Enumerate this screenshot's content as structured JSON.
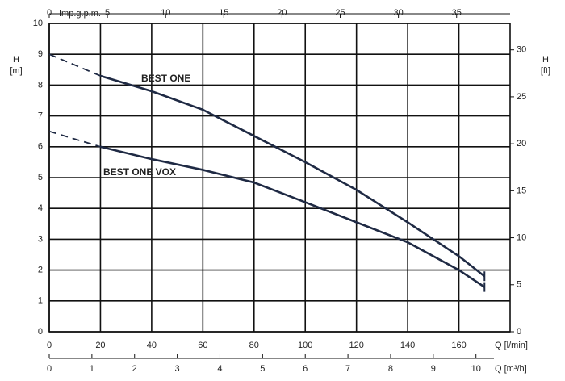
{
  "chart_data": {
    "type": "line",
    "x_label": "Q [l/min]",
    "x2_label": "Imp.g.p.m.",
    "x3_label": "Q [m³/h]",
    "y_label": "H\n[m]",
    "y2_label": "H\n[ft]",
    "xlim": [
      0,
      180
    ],
    "xticks": [
      0,
      20,
      40,
      60,
      80,
      100,
      120,
      140,
      160
    ],
    "x2lim": [
      0,
      39.595
    ],
    "x2ticks": [
      0,
      5,
      10,
      15,
      20,
      25,
      30,
      35
    ],
    "x3lim": [
      0,
      10.8
    ],
    "x3ticks": [
      0,
      1,
      2,
      3,
      4,
      5,
      6,
      7,
      8,
      9,
      10
    ],
    "ylim": [
      0,
      10
    ],
    "yticks": [
      0,
      1,
      2,
      3,
      4,
      5,
      6,
      7,
      8,
      9,
      10
    ],
    "y2lim": [
      0,
      32.808
    ],
    "y2ticks": [
      0,
      5,
      10,
      15,
      20,
      25,
      30
    ],
    "grid": true,
    "series": [
      {
        "name": "BEST ONE",
        "color": "#1f2a44",
        "dashed_first_segment": true,
        "x": [
          0,
          20,
          40,
          60,
          80,
          100,
          120,
          140,
          160,
          170
        ],
        "values": [
          9,
          8.3,
          7.8,
          7.2,
          6.35,
          5.5,
          4.6,
          3.55,
          2.45,
          1.8
        ]
      },
      {
        "name": "BEST ONE VOX",
        "color": "#1f2a44",
        "dashed_first_segment": true,
        "x": [
          0,
          20,
          40,
          60,
          80,
          100,
          120,
          140,
          160,
          170
        ],
        "values": [
          6.5,
          6.0,
          5.6,
          5.25,
          4.84,
          4.2,
          3.55,
          2.9,
          2.0,
          1.45
        ]
      }
    ]
  }
}
